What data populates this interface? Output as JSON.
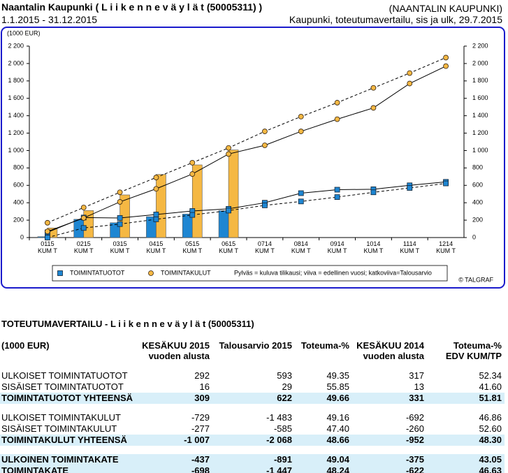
{
  "header": {
    "title": "Naantalin Kaupunki ( L i i k e n n e v ä y l ä t (50005311) )",
    "period": "1.1.2015 - 31.12.2015",
    "org": "(NAANTALIN KAUPUNKI)",
    "report": "Kaupunki, toteutumavertailu, sis ja ulk, 29.7.2015"
  },
  "chart_data": {
    "type": "combo",
    "unit_label": "(1000 EUR)",
    "categories": [
      "0115\nKUM T",
      "0215\nKUM T",
      "0315\nKUM T",
      "0415\nKUM T",
      "0515\nKUM T",
      "0615\nKUM T",
      "0714\nKUM T",
      "0814\nKUM T",
      "0914\nKUM T",
      "1014\nKUM T",
      "1114\nKUM T",
      "1214\nKUM T"
    ],
    "ylim": [
      0,
      2200
    ],
    "yticks": [
      0,
      200,
      400,
      600,
      800,
      {
        "value": 1000,
        "label": "1 000"
      },
      {
        "value": 1200,
        "label": "1 200"
      },
      {
        "value": 1400,
        "label": "1 400"
      },
      {
        "value": 1600,
        "label": "1 600"
      },
      {
        "value": 1800,
        "label": "1 800"
      },
      {
        "value": 2000,
        "label": "2 000"
      },
      {
        "value": 2200,
        "label": "2 200"
      }
    ],
    "mirror_axis": true,
    "legend": [
      {
        "name": "TOIMINTATUOTOT",
        "color": "#1e86d2",
        "marker": "square"
      },
      {
        "name": "TOIMINTAKULUT",
        "color": "#f5b843",
        "marker": "circle"
      }
    ],
    "note": "Pylväs = kuluva tilikausi; viiva = edellinen vuosi; katkoviiva=Talousarvio",
    "credit": "© TALGRAF",
    "series": [
      {
        "legend": 0,
        "mark": "bar",
        "color": "#1e86d2",
        "values": [
          10,
          210,
          170,
          240,
          270,
          309,
          null,
          null,
          null,
          null,
          null,
          null
        ]
      },
      {
        "legend": 1,
        "mark": "bar",
        "color": "#f5b843",
        "values": [
          110,
          310,
          490,
          725,
          835,
          1007,
          null,
          null,
          null,
          null,
          null,
          null
        ]
      },
      {
        "legend": 0,
        "mark": "solid",
        "color": "#1e86d2",
        "values": [
          60,
          230,
          225,
          265,
          305,
          330,
          400,
          510,
          550,
          555,
          600,
          640
        ]
      },
      {
        "legend": 0,
        "mark": "dashed",
        "color": "#1e86d2",
        "values": [
          0,
          110,
          155,
          210,
          260,
          310,
          370,
          415,
          465,
          520,
          570,
          622
        ]
      },
      {
        "legend": 1,
        "mark": "solid",
        "color": "#f5b843",
        "values": [
          70,
          225,
          410,
          560,
          730,
          960,
          1060,
          1220,
          1360,
          1490,
          1770,
          1970
        ]
      },
      {
        "legend": 1,
        "mark": "dashed",
        "color": "#f5b843",
        "values": [
          170,
          345,
          520,
          690,
          860,
          1030,
          1220,
          1390,
          1550,
          1720,
          1890,
          2068
        ]
      }
    ]
  },
  "table": {
    "title": "TOTEUTUMAVERTAILU - L i i k e n n e v ä y l ä t (50005311)",
    "header": [
      "(1000 EUR)",
      "KESÄKUU 2015\nvuoden alusta",
      "Talousarvio 2015",
      "Toteuma-%",
      "KESÄKUU 2014\nvuoden alusta",
      "Toteuma-%\nEDV KUM/TP"
    ],
    "groups": [
      [
        {
          "cells": [
            "ULKOISET TOIMINTATUOTOT",
            "292",
            "593",
            "49.35",
            "317",
            "52.34"
          ],
          "total": false
        },
        {
          "cells": [
            "SISÄISET TOIMINTATUOTOT",
            "16",
            "29",
            "55.85",
            "13",
            "41.60"
          ],
          "total": false
        },
        {
          "cells": [
            "TOIMINTATUOTOT YHTEENSÄ",
            "309",
            "622",
            "49.66",
            "331",
            "51.81"
          ],
          "total": true
        }
      ],
      [
        {
          "cells": [
            "ULKOISET TOIMINTAKULUT",
            "-729",
            "-1 483",
            "49.16",
            "-692",
            "46.86"
          ],
          "total": false
        },
        {
          "cells": [
            "SISÄISET TOIMINTAKULUT",
            "-277",
            "-585",
            "47.40",
            "-260",
            "52.60"
          ],
          "total": false
        },
        {
          "cells": [
            "TOIMINTAKULUT YHTEENSÄ",
            "-1 007",
            "-2 068",
            "48.66",
            "-952",
            "48.30"
          ],
          "total": true
        }
      ],
      [
        {
          "cells": [
            "ULKOINEN TOIMINTAKATE",
            "-437",
            "-891",
            "49.04",
            "-375",
            "43.05"
          ],
          "total": true
        },
        {
          "cells": [
            "TOIMINTAKATE",
            "-698",
            "-1 447",
            "48.24",
            "-622",
            "46.63"
          ],
          "total": true
        }
      ]
    ]
  }
}
